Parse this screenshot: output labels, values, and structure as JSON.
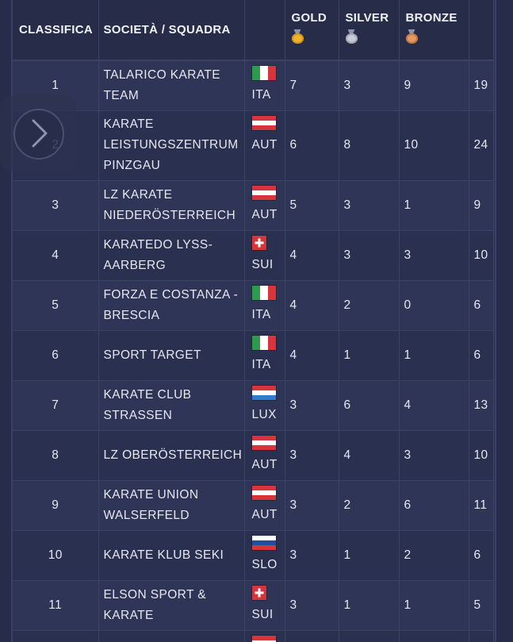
{
  "table": {
    "headers": {
      "rank": "CLASSIFICA",
      "team": "SOCIETÀ / SQUADRA",
      "gold": "GOLD",
      "silver": "SILVER",
      "bronze": "BRONZE"
    },
    "rows": [
      {
        "pos": "1",
        "team": [
          "TALARICO KARATE",
          "TEAM"
        ],
        "flag": "it",
        "nat": "ITA",
        "gold": "7",
        "silver": "3",
        "bronze": "9",
        "total": "19"
      },
      {
        "pos": "2",
        "team": [
          "KARATE",
          "LEISTUNGSZENTRUM",
          "PINZGAU"
        ],
        "flag": "at",
        "nat": "AUT",
        "gold": "6",
        "silver": "8",
        "bronze": "10",
        "total": "24"
      },
      {
        "pos": "3",
        "team": [
          "LZ KARATE",
          "NIEDERÖSTERREICH"
        ],
        "flag": "at",
        "nat": "AUT",
        "gold": "5",
        "silver": "3",
        "bronze": "1",
        "total": "9"
      },
      {
        "pos": "4",
        "team": [
          "KARATEDO LYSS-",
          "AARBERG"
        ],
        "flag": "ch",
        "nat": "SUI",
        "gold": "4",
        "silver": "3",
        "bronze": "3",
        "total": "10"
      },
      {
        "pos": "5",
        "team": [
          "FORZA E COSTANZA -",
          "BRESCIA"
        ],
        "flag": "it",
        "nat": "ITA",
        "gold": "4",
        "silver": "2",
        "bronze": "0",
        "total": "6"
      },
      {
        "pos": "6",
        "team": [
          "SPORT TARGET"
        ],
        "flag": "it",
        "nat": "ITA",
        "gold": "4",
        "silver": "1",
        "bronze": "1",
        "total": "6"
      },
      {
        "pos": "7",
        "team": [
          "KARATE CLUB",
          "STRASSEN"
        ],
        "flag": "lu",
        "nat": "LUX",
        "gold": "3",
        "silver": "6",
        "bronze": "4",
        "total": "13"
      },
      {
        "pos": "8",
        "team": [
          "LZ OBERÖSTERREICH"
        ],
        "flag": "at",
        "nat": "AUT",
        "gold": "3",
        "silver": "4",
        "bronze": "3",
        "total": "10"
      },
      {
        "pos": "9",
        "team": [
          "KARATE UNION",
          "WALSERFELD"
        ],
        "flag": "at",
        "nat": "AUT",
        "gold": "3",
        "silver": "2",
        "bronze": "6",
        "total": "11"
      },
      {
        "pos": "10",
        "team": [
          "KARATE KLUB SEKI"
        ],
        "flag": "si",
        "nat": "SLO",
        "gold": "3",
        "silver": "1",
        "bronze": "2",
        "total": "6"
      },
      {
        "pos": "11",
        "team": [
          "ELSON SPORT &",
          "KARATE"
        ],
        "flag": "ch",
        "nat": "SUI",
        "gold": "3",
        "silver": "1",
        "bronze": "1",
        "total": "5"
      },
      {
        "pos": "",
        "team": [
          ""
        ],
        "flag": "at",
        "nat": "",
        "gold": "",
        "silver": "",
        "bronze": "",
        "total": ""
      }
    ]
  },
  "icons": {
    "gold": "gold-medal-icon",
    "silver": "silver-medal-icon",
    "bronze": "bronze-medal-icon",
    "nav": "chevron-right-icon"
  },
  "colors": {
    "background": "#272c4a",
    "row_odd": "#2f3556",
    "row_even": "#2a3050",
    "gold": "#f0b429",
    "silver": "#c9ccd4",
    "bronze": "#e29a63"
  }
}
